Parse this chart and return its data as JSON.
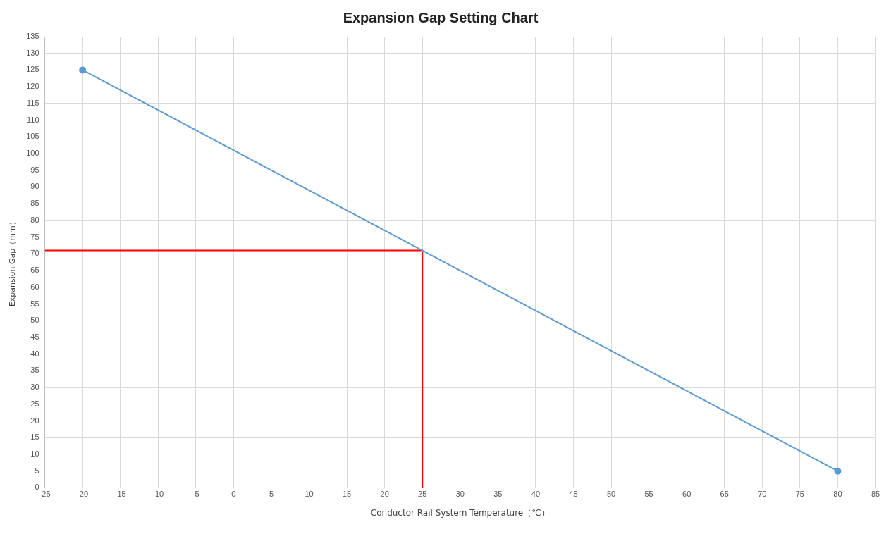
{
  "chart_data": {
    "type": "line",
    "title": "Expansion Gap Setting Chart",
    "xlabel": "Conductor Rail System Temperature（℃）",
    "ylabel": "Expansion Gap（mm）",
    "series": [
      {
        "color": "#5b9bd5",
        "x": [
          -20,
          80
        ],
        "values": [
          125,
          5
        ],
        "marker": "circle"
      },
      {
        "color": "#ff0000",
        "x": [
          -25,
          25,
          25
        ],
        "values": [
          71,
          71,
          0
        ],
        "marker": "none"
      }
    ],
    "xlim": [
      -25,
      85
    ],
    "xticks": [
      -25,
      -20,
      -15,
      -10,
      -5,
      0,
      5,
      10,
      15,
      20,
      25,
      30,
      35,
      40,
      45,
      50,
      55,
      60,
      65,
      70,
      75,
      80,
      85
    ],
    "ylim": [
      0,
      135
    ],
    "yticks": [
      0,
      5,
      10,
      15,
      20,
      25,
      30,
      35,
      40,
      45,
      50,
      55,
      60,
      65,
      70,
      75,
      80,
      85,
      90,
      95,
      100,
      105,
      110,
      115,
      120,
      125,
      130,
      135
    ],
    "grid": true,
    "legend": false,
    "line_style": "solid"
  }
}
